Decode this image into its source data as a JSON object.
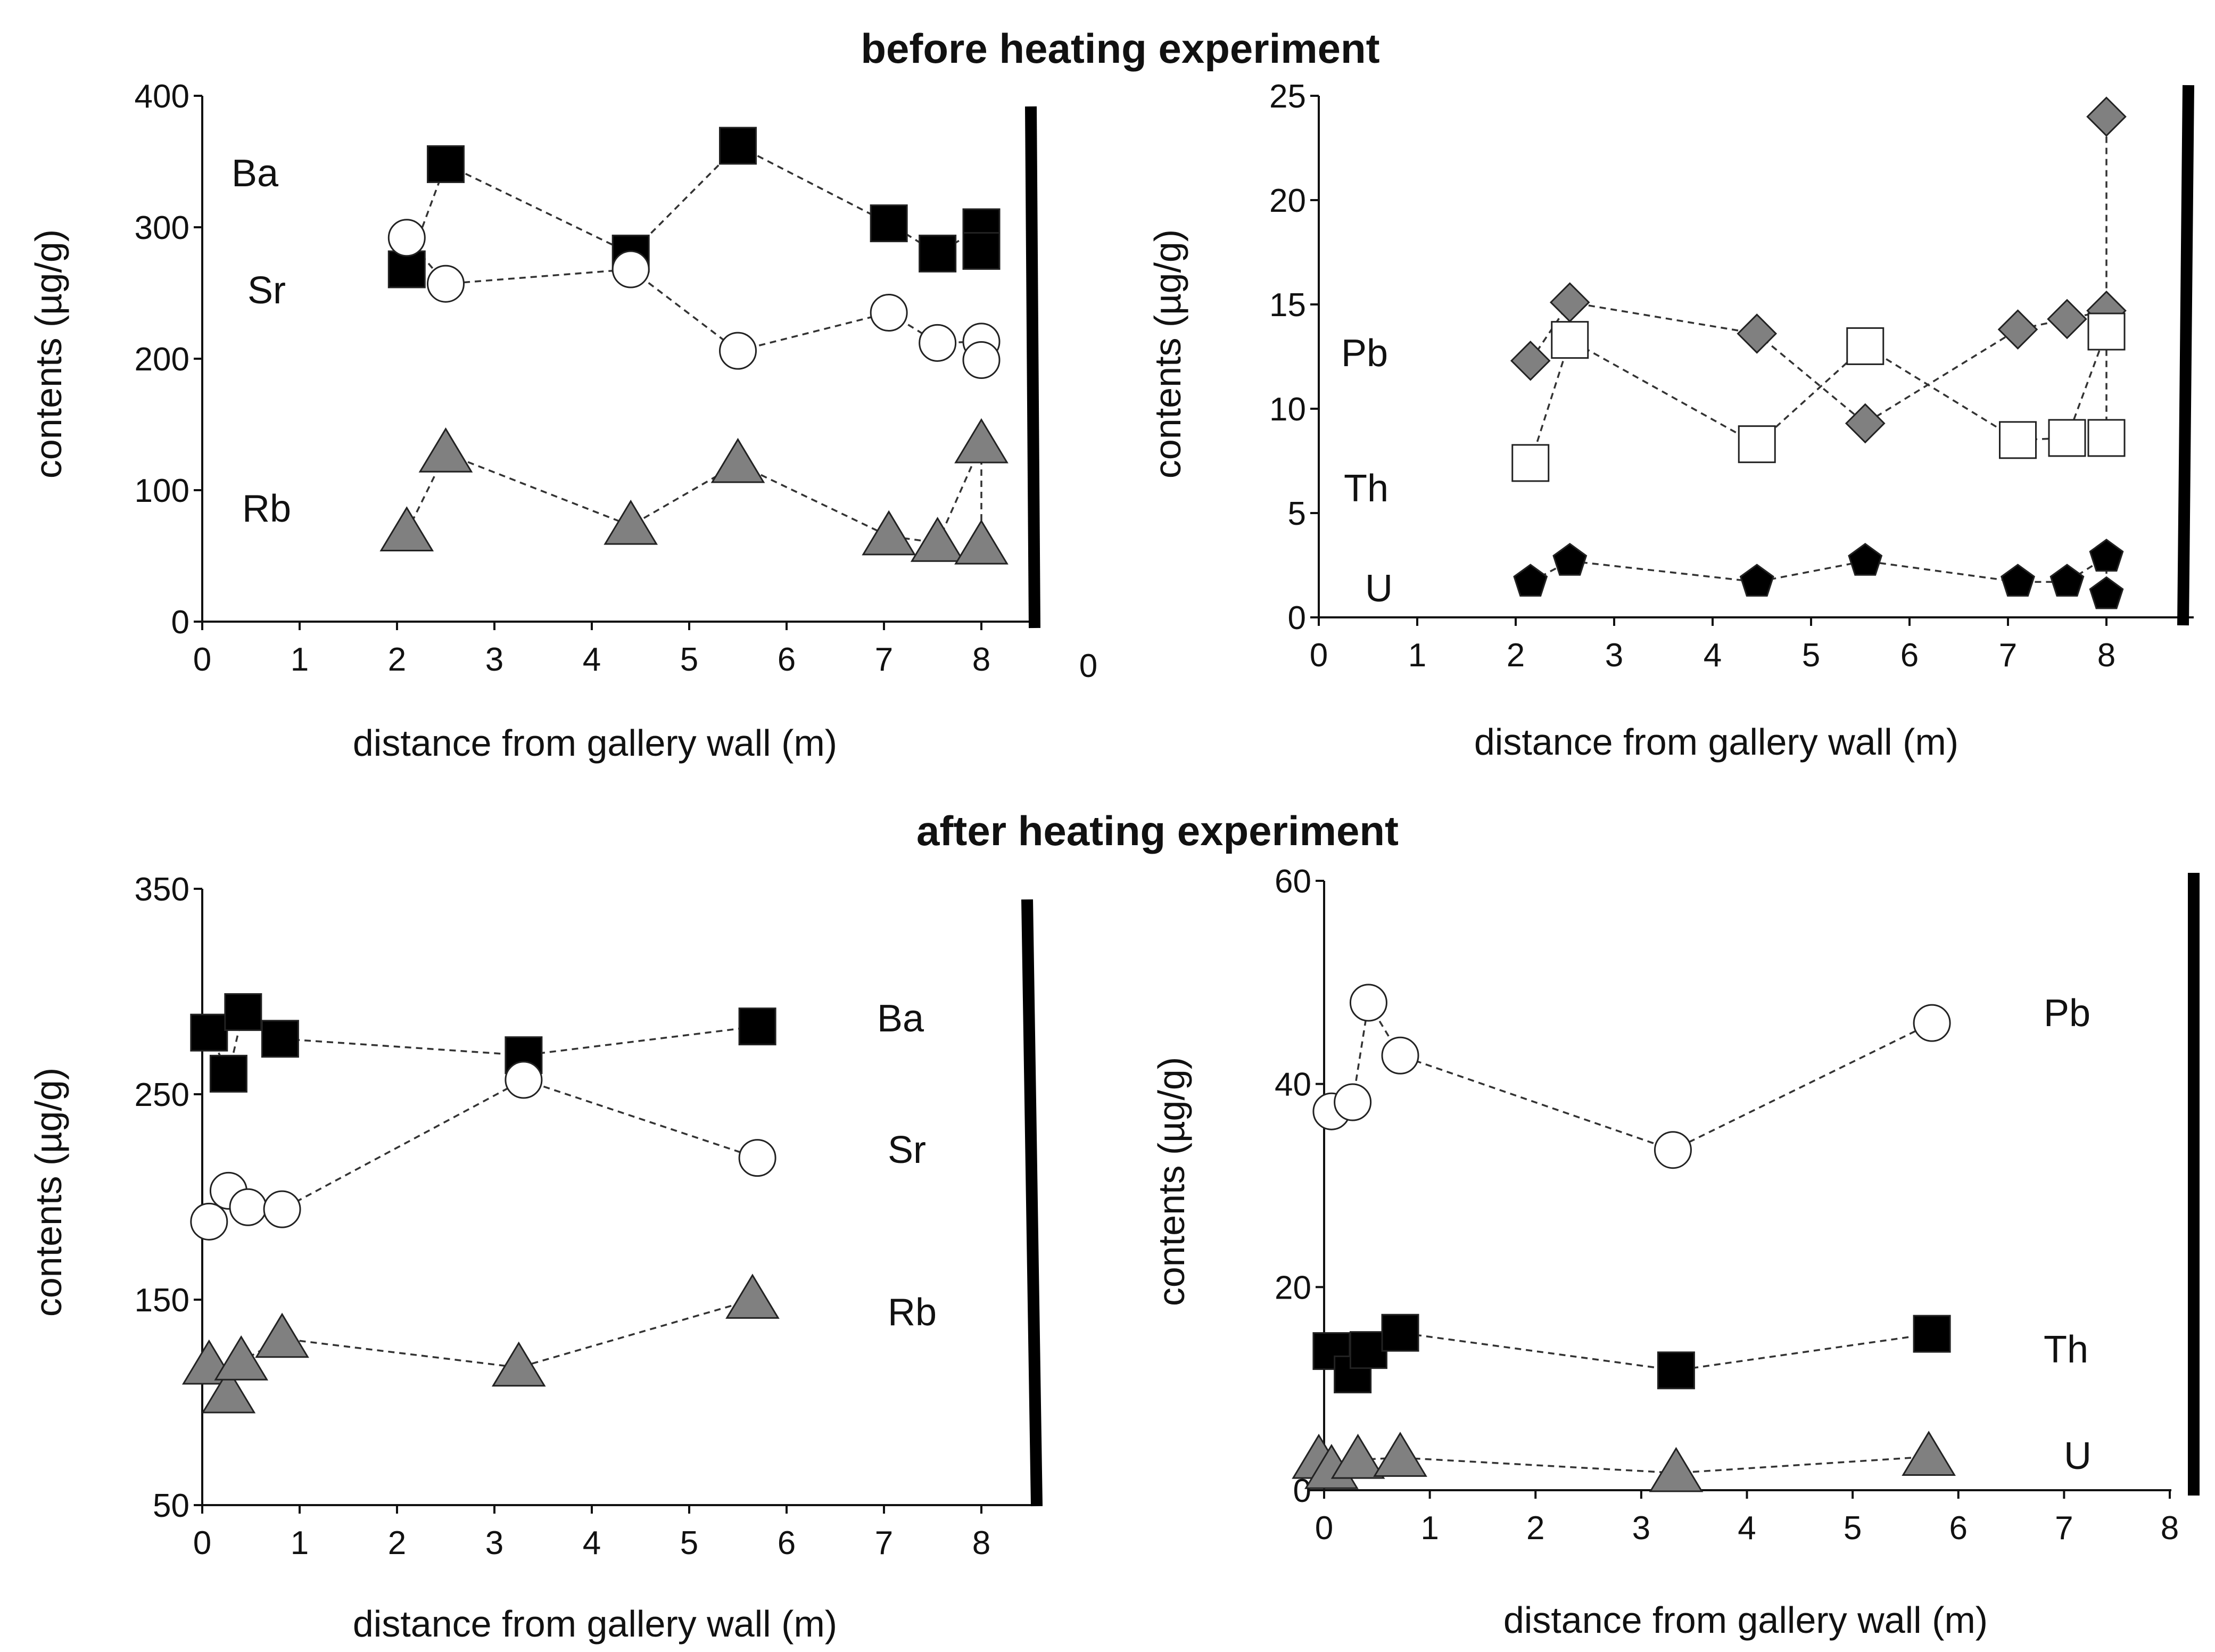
{
  "colors": {
    "black_marker": "#000000",
    "white_marker": "#ffffff",
    "gray_marker": "#808080",
    "outline": "#222222"
  },
  "titles": {
    "before": "before heating experiment",
    "after": "after heating experiment"
  },
  "chart_data": [
    {
      "type": "scatter",
      "title": "before heating experiment",
      "xlabel": "distance from gallery wall (m)",
      "ylabel": "contents (µg/g)",
      "xlim": [
        0,
        8.5
      ],
      "ylim": [
        0,
        400
      ],
      "xticks": [
        "0",
        "1",
        "2",
        "3",
        "4",
        "5",
        "6",
        "7",
        "8"
      ],
      "yticks": [
        "0",
        "100",
        "200",
        "300",
        "400"
      ],
      "stray_tick_label": "0",
      "series": [
        {
          "name": "Ba",
          "marker": "square",
          "fill": "#000000",
          "x": [
            2.1,
            2.5,
            4.4,
            5.5,
            7.05,
            7.55,
            8.0,
            8.0
          ],
          "y": [
            268,
            348,
            280,
            362,
            303,
            280,
            300,
            282
          ]
        },
        {
          "name": "Sr",
          "marker": "circle",
          "fill": "#ffffff",
          "x": [
            2.1,
            2.5,
            4.4,
            5.5,
            7.05,
            7.55,
            8.0,
            8.0
          ],
          "y": [
            292,
            257,
            268,
            206,
            235,
            212,
            213,
            199
          ]
        },
        {
          "name": "Rb",
          "marker": "triangle",
          "fill": "#808080",
          "x": [
            2.1,
            2.5,
            4.4,
            5.5,
            7.05,
            7.55,
            8.0,
            8.0
          ],
          "y": [
            68,
            128,
            73,
            120,
            65,
            60,
            135,
            58
          ]
        }
      ]
    },
    {
      "type": "scatter",
      "title": "before heating experiment",
      "xlabel": "distance from gallery wall (m)",
      "ylabel": "contents (µg/g)",
      "xlim": [
        0,
        8.5
      ],
      "ylim": [
        0,
        25
      ],
      "xticks": [
        "0",
        "1",
        "2",
        "3",
        "4",
        "5",
        "6",
        "7",
        "8"
      ],
      "yticks": [
        "0",
        "5",
        "10",
        "15",
        "20",
        "25"
      ],
      "series": [
        {
          "name": "Pb",
          "marker": "diamond",
          "fill": "#808080",
          "x": [
            2.15,
            2.55,
            4.45,
            5.55,
            7.1,
            7.6,
            8.0,
            8.0
          ],
          "y": [
            12.3,
            15.1,
            13.6,
            9.3,
            13.8,
            14.3,
            14.7,
            24.0
          ]
        },
        {
          "name": "Th",
          "marker": "square",
          "fill": "#ffffff",
          "x": [
            2.15,
            2.55,
            4.45,
            5.55,
            7.1,
            7.6,
            8.0,
            8.0
          ],
          "y": [
            7.4,
            13.3,
            8.3,
            13.0,
            8.5,
            8.6,
            13.7,
            8.6
          ]
        },
        {
          "name": "U",
          "marker": "pentagon",
          "fill": "#000000",
          "x": [
            2.15,
            2.55,
            4.45,
            5.55,
            7.1,
            7.6,
            8.0,
            8.0
          ],
          "y": [
            1.7,
            2.7,
            1.7,
            2.7,
            1.7,
            1.7,
            2.9,
            1.1
          ]
        }
      ]
    },
    {
      "type": "scatter",
      "title": "after heating experiment",
      "xlabel": "distance from gallery wall (m)",
      "ylabel": "contents (µg/g)",
      "xlim": [
        0,
        8.5
      ],
      "ylim": [
        50,
        350
      ],
      "xticks": [
        "0",
        "1",
        "2",
        "3",
        "4",
        "5",
        "6",
        "7",
        "8"
      ],
      "yticks": [
        "50",
        "150",
        "250",
        "350"
      ],
      "series": [
        {
          "name": "Ba",
          "marker": "square",
          "fill": "#000000",
          "x": [
            0.07,
            0.27,
            0.42,
            0.8,
            3.3,
            5.7
          ],
          "y": [
            280,
            260,
            290,
            277,
            269,
            283
          ]
        },
        {
          "name": "Sr",
          "marker": "circle",
          "fill": "#ffffff",
          "x": [
            0.07,
            0.27,
            0.47,
            0.82,
            3.3,
            5.7
          ],
          "y": [
            188,
            203,
            195,
            194,
            257,
            219
          ]
        },
        {
          "name": "Rb",
          "marker": "triangle",
          "fill": "#808080",
          "x": [
            0.07,
            0.27,
            0.4,
            0.82,
            3.25,
            5.65
          ],
          "y": [
            118,
            104,
            120,
            131,
            117,
            150
          ]
        }
      ]
    },
    {
      "type": "scatter",
      "title": "after heating experiment",
      "xlabel": "distance from gallery wall (m)",
      "ylabel": "contents (µg/g)",
      "xlim": [
        0,
        8
      ],
      "ylim": [
        0,
        60
      ],
      "xticks": [
        "0",
        "1",
        "2",
        "3",
        "4",
        "5",
        "6",
        "7",
        "8"
      ],
      "yticks": [
        "0",
        "20",
        "40",
        "60"
      ],
      "series": [
        {
          "name": "Pb",
          "marker": "circle",
          "fill": "#ffffff",
          "x": [
            0.07,
            0.27,
            0.42,
            0.72,
            3.3,
            5.75
          ],
          "y": [
            37.3,
            38.2,
            48.0,
            42.8,
            33.5,
            46.0
          ]
        },
        {
          "name": "Th",
          "marker": "square",
          "fill": "#000000",
          "x": [
            0.07,
            0.27,
            0.42,
            0.72,
            3.33,
            5.75
          ],
          "y": [
            13.7,
            11.4,
            13.8,
            15.5,
            11.8,
            15.4
          ]
        },
        {
          "name": "U",
          "marker": "triangle",
          "fill": "#808080",
          "x": [
            -0.05,
            0.07,
            0.32,
            0.72,
            3.33,
            5.72
          ],
          "y": [
            3.0,
            2.0,
            3.0,
            3.2,
            1.7,
            3.3
          ]
        }
      ]
    }
  ]
}
